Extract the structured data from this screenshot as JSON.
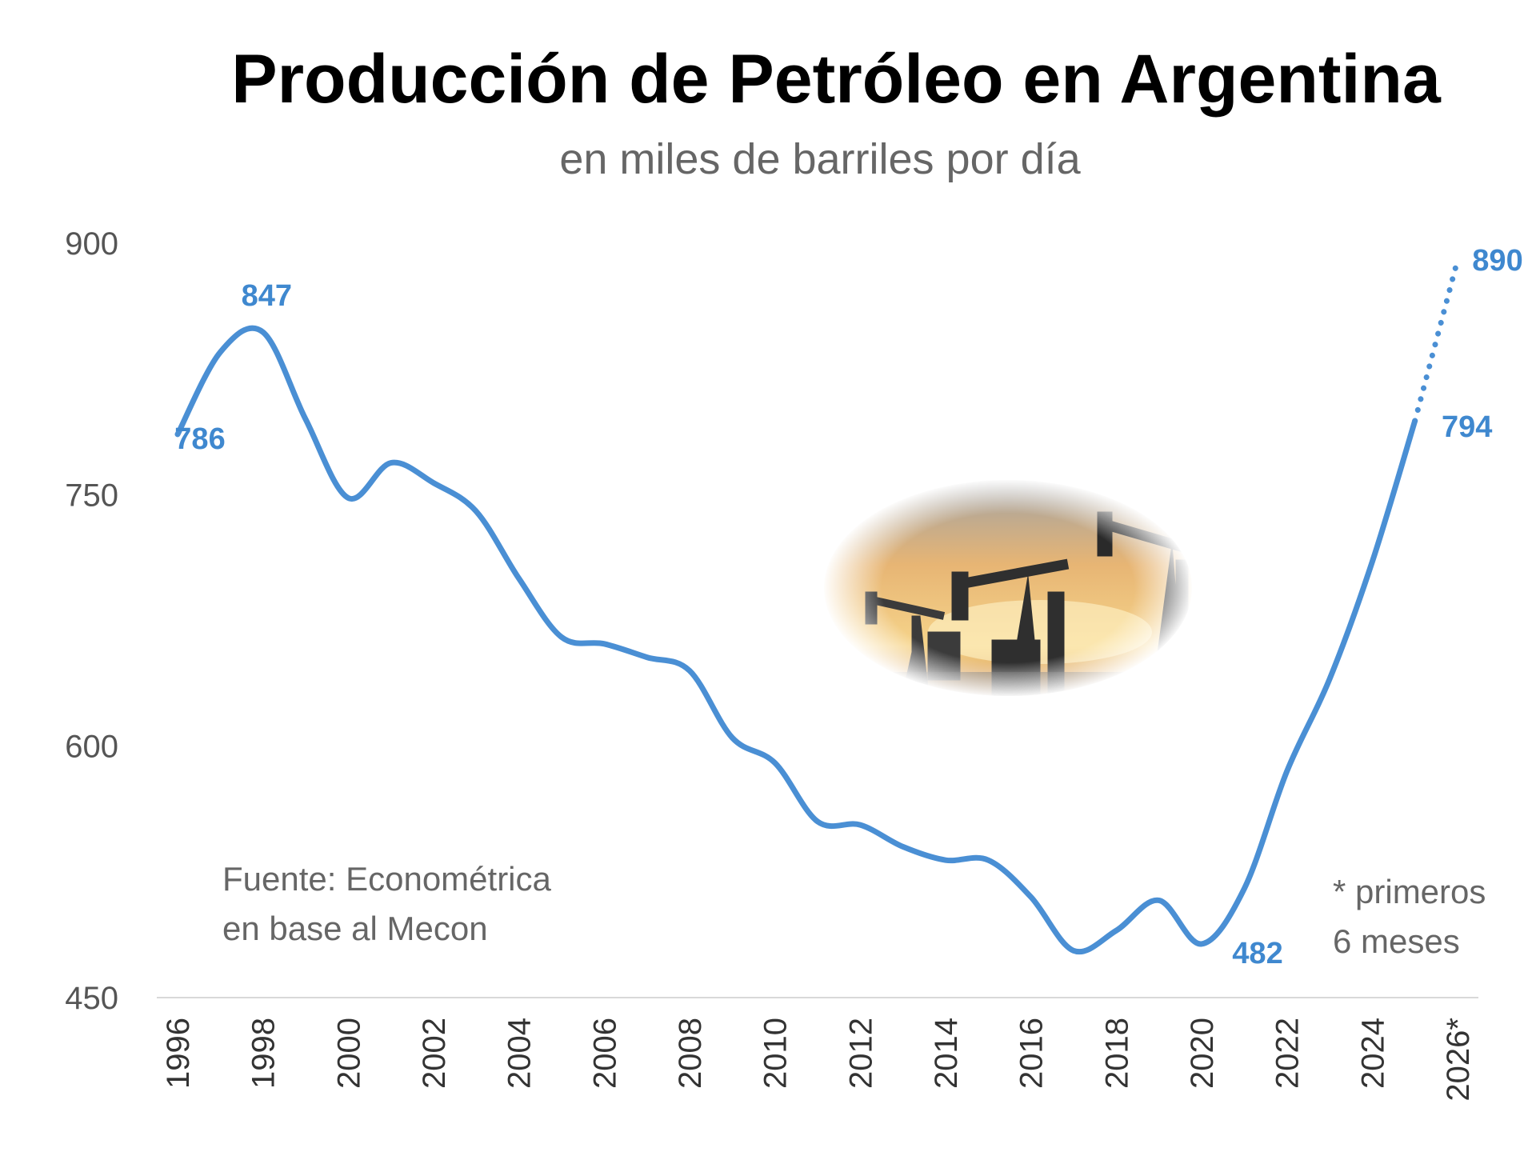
{
  "chart_data": {
    "type": "line",
    "title": "Producción de Petróleo en Argentina",
    "subtitle": "en miles de barriles por día",
    "xlabel": "",
    "ylabel": "",
    "ylim": [
      450,
      900
    ],
    "yticks": [
      "900",
      "750",
      "600",
      "450"
    ],
    "xticks": [
      "1996",
      "1998",
      "2000",
      "2002",
      "2004",
      "2006",
      "2008",
      "2010",
      "2012",
      "2014",
      "2016",
      "2018",
      "2020",
      "2022",
      "2024",
      "2026*"
    ],
    "grid": false,
    "series": [
      {
        "style": "solid",
        "color": "#4a8fd4",
        "x": [
          1996,
          1997,
          1998,
          1999,
          2000,
          2001,
          2002,
          2003,
          2004,
          2005,
          2006,
          2007,
          2008,
          2009,
          2010,
          2011,
          2012,
          2013,
          2014,
          2015,
          2016,
          2017,
          2018,
          2019,
          2020,
          2021,
          2022,
          2023,
          2024,
          2025
        ],
        "values": [
          786,
          835,
          847,
          795,
          748,
          769,
          757,
          740,
          700,
          665,
          661,
          653,
          645,
          605,
          590,
          555,
          553,
          540,
          532,
          532,
          510,
          478,
          490,
          508,
          482,
          515,
          585,
          640,
          710,
          794
        ]
      },
      {
        "style": "dotted",
        "color": "#4a8fd4",
        "x": [
          2025,
          2026
        ],
        "values": [
          794,
          890
        ]
      }
    ],
    "data_labels": [
      {
        "text": "847",
        "x": 1997.9,
        "y": 847
      },
      {
        "text": "786",
        "x": 1996.0,
        "y": 786
      },
      {
        "text": "482",
        "x": 2020.0,
        "y": 482
      },
      {
        "text": "794",
        "x": 2025.0,
        "y": 794
      },
      {
        "text": "890",
        "x": 2026.0,
        "y": 890
      }
    ]
  },
  "notes": {
    "source_line1": "Fuente: Econométrica",
    "source_line2": "en base al Mecon",
    "footnote_line1": "* primeros",
    "footnote_line2": "6 meses"
  }
}
